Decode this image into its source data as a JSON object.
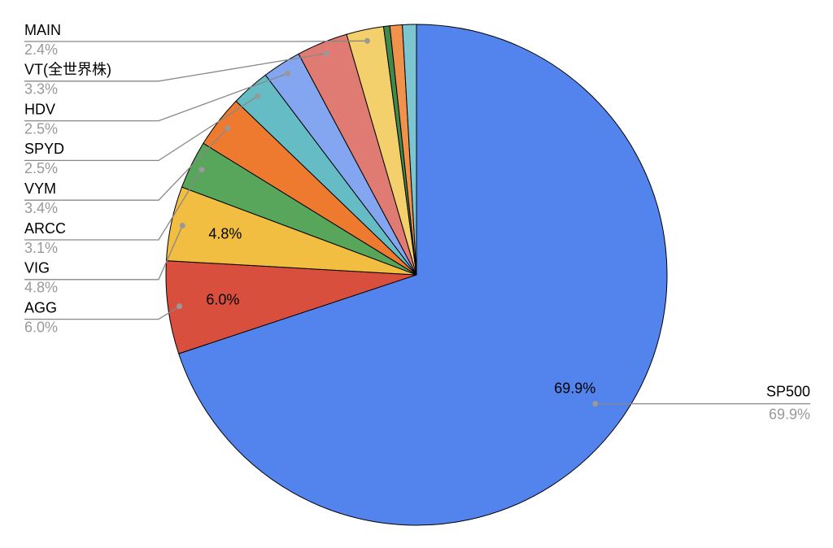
{
  "chart_data": {
    "type": "pie",
    "categories": [
      "SP500",
      "AGG",
      "VIG",
      "ARCC",
      "VYM",
      "SPYD",
      "HDV",
      "VT(全世界株)",
      "MAIN",
      null,
      null,
      null
    ],
    "values": [
      69.9,
      6.0,
      4.8,
      3.1,
      3.4,
      2.5,
      2.5,
      3.3,
      2.4,
      0.4,
      0.8,
      0.9
    ],
    "value_labels": [
      "69.9%",
      "6.0%",
      "4.8%",
      "3.1%",
      "3.4%",
      "2.5%",
      "2.5%",
      "3.3%",
      "2.4%",
      null,
      null,
      null
    ],
    "colors": [
      "#5383ec",
      "#d94f3d",
      "#f1be42",
      "#58a65c",
      "#ee7a30",
      "#66bcc4",
      "#84a6f0",
      "#e07b73",
      "#f3d06b",
      "#3f8a4a",
      "#f0914c",
      "#7dc5d0"
    ]
  }
}
